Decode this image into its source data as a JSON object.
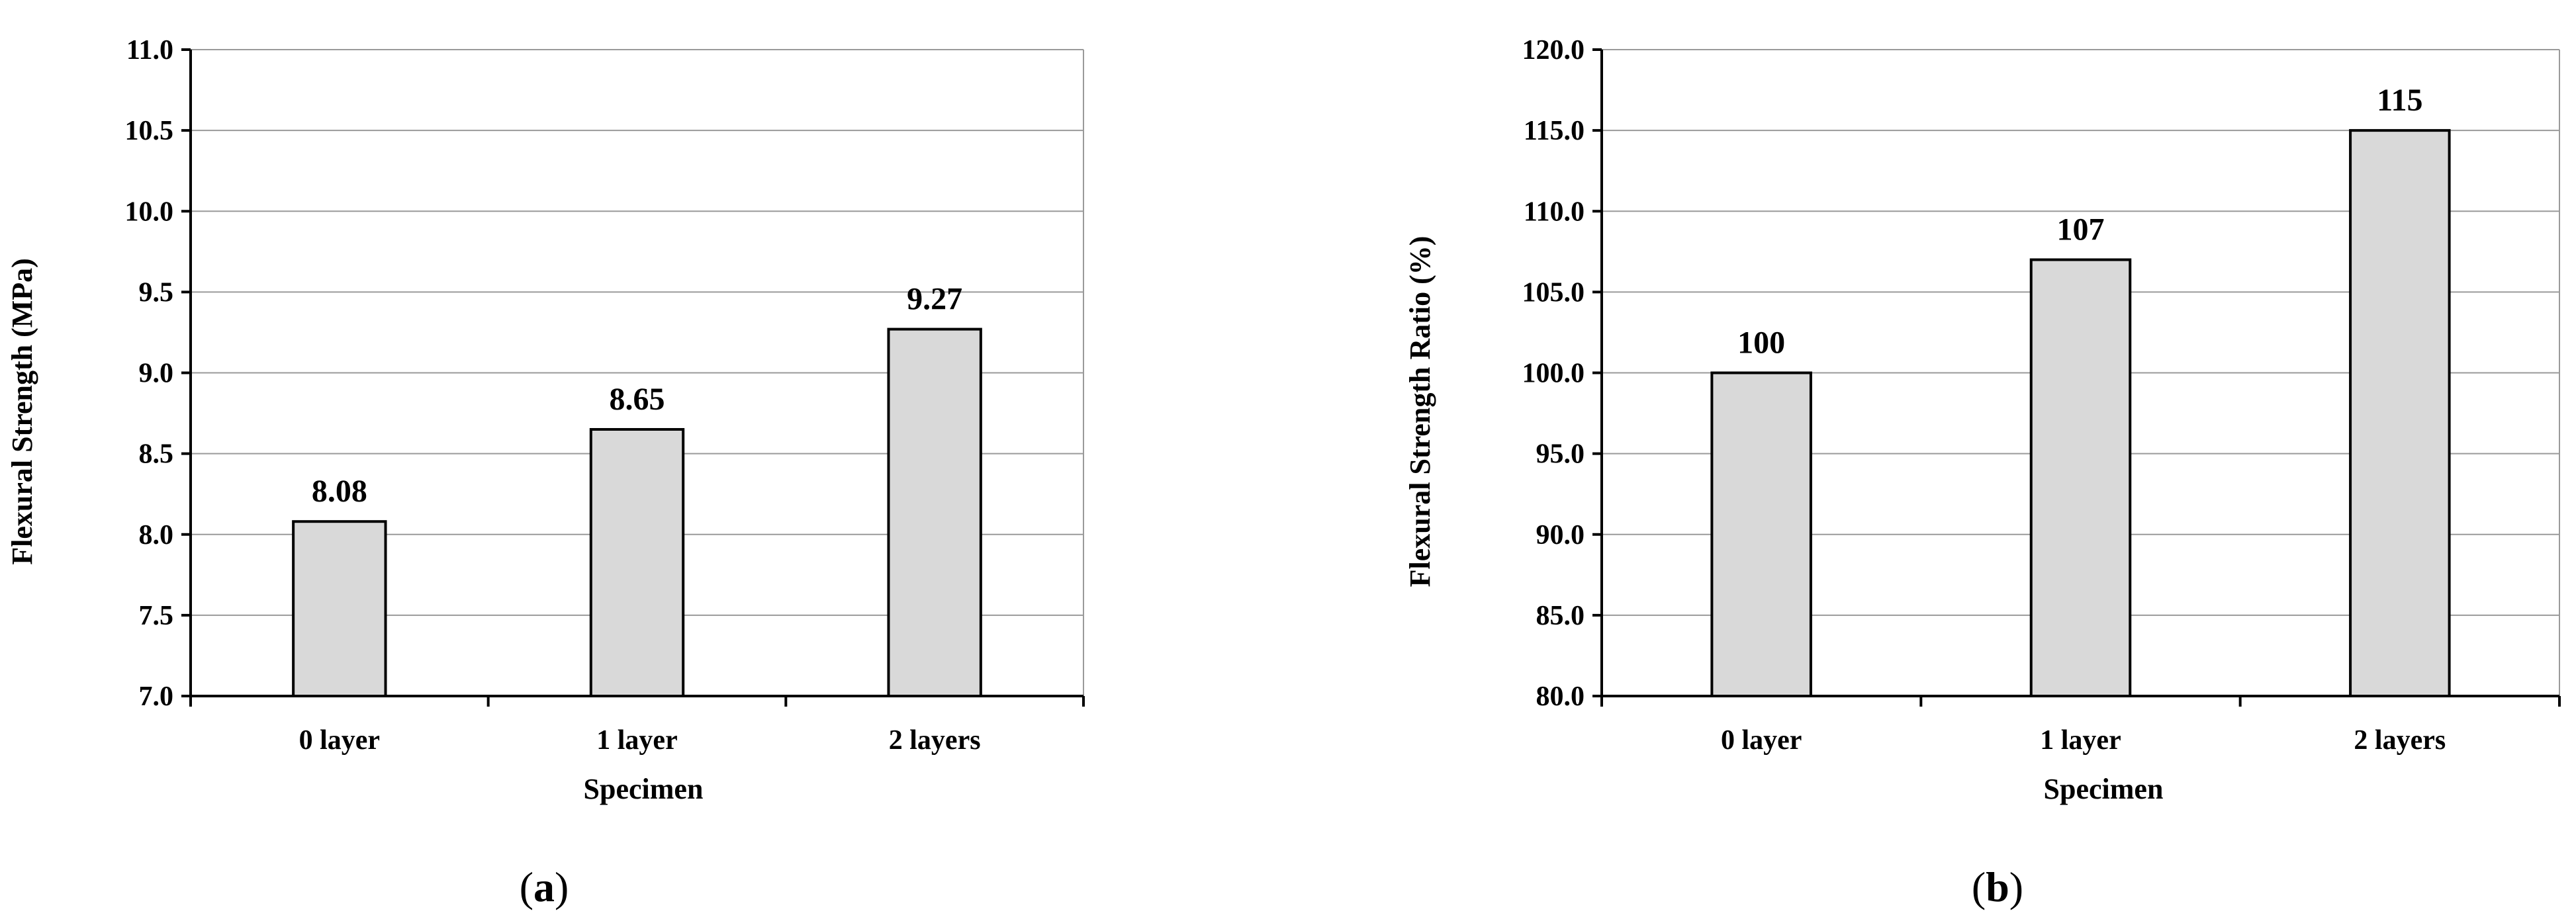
{
  "figures": [
    {
      "id": "a",
      "caption_open": "(",
      "caption_letter": "a",
      "caption_close": ")"
    },
    {
      "id": "b",
      "caption_open": "(",
      "caption_letter": "b",
      "caption_close": ")"
    }
  ],
  "colors": {
    "bar_fill": "#d9d9d9",
    "bar_stroke": "#000000",
    "grid": "#9a9a9a",
    "axis": "#000000"
  },
  "chart_data": [
    {
      "type": "bar",
      "title": "",
      "xlabel": "Specimen",
      "ylabel": "Flexural Strength (MPa)",
      "categories": [
        "0 layer",
        "1 layer",
        "2 layers"
      ],
      "values": [
        8.08,
        8.65,
        9.27
      ],
      "data_labels": [
        "8.08",
        "8.65",
        "9.27"
      ],
      "ylim": [
        7.0,
        11.0
      ],
      "yticks": [
        "7.0",
        "7.5",
        "8.0",
        "8.5",
        "9.0",
        "9.5",
        "10.0",
        "10.5",
        "11.0"
      ],
      "grid": true,
      "legend": "none"
    },
    {
      "type": "bar",
      "title": "",
      "xlabel": "Specimen",
      "ylabel": "Flexural Strength Ratio  (%)",
      "categories": [
        "0 layer",
        "1 layer",
        "2 layers"
      ],
      "values": [
        100,
        107,
        115
      ],
      "data_labels": [
        "100",
        "107",
        "115"
      ],
      "ylim": [
        80.0,
        120.0
      ],
      "yticks": [
        "80.0",
        "85.0",
        "90.0",
        "95.0",
        "100.0",
        "105.0",
        "110.0",
        "115.0",
        "120.0"
      ],
      "grid": true,
      "legend": "none"
    }
  ]
}
